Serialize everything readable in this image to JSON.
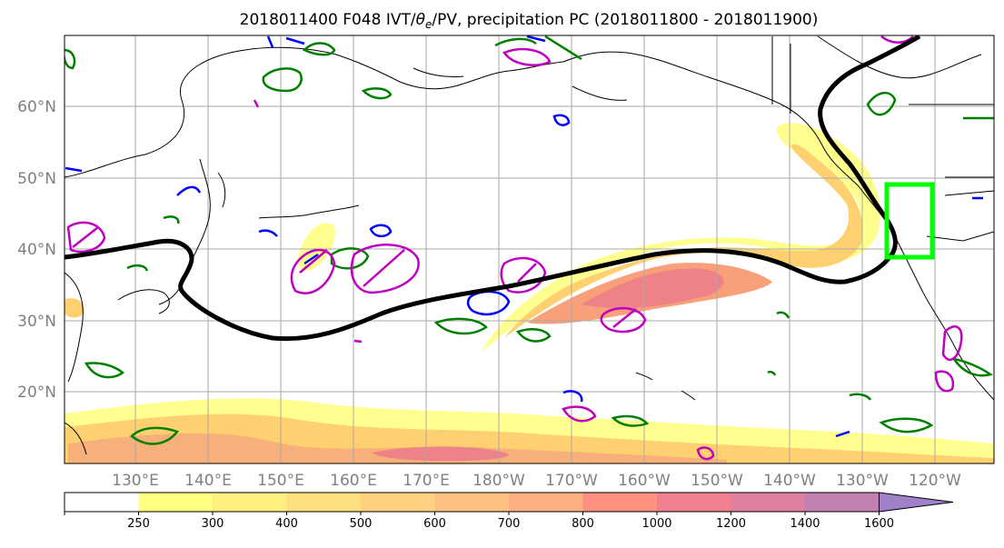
{
  "title_parts": {
    "prefix": "2018011400 F048 IVT/",
    "theta": "θ",
    "theta_sub": "e",
    "suffix": "/PV, precipitation PC (2018011800 - 2018011900)"
  },
  "map": {
    "lat_labels": [
      "60°N",
      "50°N",
      "40°N",
      "30°N",
      "20°N"
    ],
    "lon_labels": [
      "130°E",
      "140°E",
      "150°E",
      "160°E",
      "170°E",
      "180°W",
      "170°W",
      "160°W",
      "150°W",
      "140°W",
      "130°W",
      "120°W"
    ]
  },
  "colorbar": {
    "ticks": [
      "250",
      "300",
      "400",
      "500",
      "600",
      "700",
      "800",
      "1000",
      "1200",
      "1400",
      "1600"
    ],
    "colors": [
      "#ffffff",
      "#ffff80",
      "#fff080",
      "#ffe080",
      "#ffd080",
      "#ffc080",
      "#ffb080",
      "#ff9080",
      "#f08090",
      "#e080a0",
      "#c080b0",
      "#a080c8"
    ]
  },
  "colors": {
    "precip_light": "#ffff90",
    "precip_mid": "#ffd070",
    "precip_high": "#f7a079",
    "precip_peak": "#ee8288",
    "thetae_contour": "#008000",
    "pv_positive": "#c000c0",
    "pv_negative": "#0000ff",
    "ivt_line": "#000000",
    "box": "#00ff00"
  }
}
